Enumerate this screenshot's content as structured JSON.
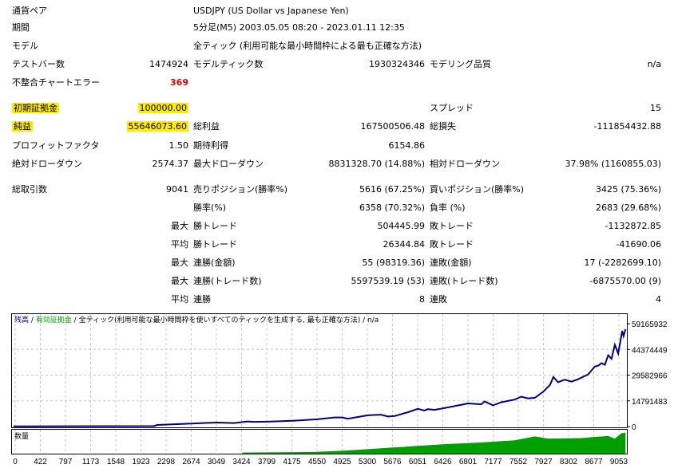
{
  "report": {
    "rows": [
      {
        "l1": "通貨ペア",
        "span": "USDJPY (US Dollar vs Japanese Yen)"
      },
      {
        "l1": "期間",
        "span": "5分足(M5) 2003.05.05 08:20 - 2023.01.11 12:35"
      },
      {
        "l1": "モデル",
        "span": "全ティック (利用可能な最小時間枠による最も正確な方法)"
      },
      {
        "l1": "テストバー数",
        "v1": "1474924",
        "l2": "モデルティック数",
        "v2": "1930324346",
        "l3": "モデリング品質",
        "v3": "n/a"
      },
      {
        "l1": "不整合チャートエラー",
        "v1": "369",
        "red": true
      },
      {
        "l1": "初期証拠金",
        "v1": "100000.00",
        "l3": "スプレッド",
        "v3": "15",
        "hl": true
      },
      {
        "l1": "純益",
        "v1": "55646073.60",
        "l2": "総利益",
        "v2": "167500506.48",
        "l3": "総損失",
        "v3": "-111854432.88",
        "hl": true
      },
      {
        "l1": "プロフィットファクタ",
        "v1": "1.50",
        "l2": "期待利得",
        "v2": "6154.86"
      },
      {
        "l1": "絶対ドローダウン",
        "v1": "2574.37",
        "l2": "最大ドローダウン",
        "v2": "8831328.70 (14.88%)",
        "l3": "相対ドローダウン",
        "v3": "37.98% (1160855.03)"
      },
      {
        "l1": "総取引数",
        "v1": "9041",
        "l2": "売りポジション(勝率%)",
        "v2": "5616 (67.25%)",
        "l3": "買いポジション(勝率%)",
        "v3": "3425 (75.36%)"
      },
      {
        "l2": "勝率(%)",
        "v2": "6358 (70.32%)",
        "l3": "負率 (%)",
        "v3": "2683 (29.68%)"
      },
      {
        "v1": "最大",
        "l2": "勝トレード",
        "v2": "504445.99",
        "l3": "敗トレード",
        "v3": "-1132872.85"
      },
      {
        "v1": "平均",
        "l2": "勝トレード",
        "v2": "26344.84",
        "l3": "敗トレード",
        "v3": "-41690.06"
      },
      {
        "v1": "最大",
        "l2": "連勝(金額)",
        "v2": "55 (98319.36)",
        "l3": "連敗(金額)",
        "v3": "17 (-2282699.10)"
      },
      {
        "v1": "最大",
        "l2": "連勝(トレード数)",
        "v2": "5597539.19 (53)",
        "l3": "連敗(トレード数)",
        "v3": "-6875570.00 (9)"
      },
      {
        "v1": "平均",
        "l2": "連勝",
        "v2": "8",
        "l3": "連敗",
        "v3": "4"
      }
    ]
  },
  "colors": {
    "highlight": "#ffeb00",
    "error": "#e00000",
    "balance": "#000080",
    "equity": "#00a000",
    "volume": "#00a000",
    "grid": "#c8c8c8"
  },
  "chart_data": {
    "type": "line",
    "title_parts": {
      "balance": "残高",
      "sep1": " / ",
      "equity": "有効証拠金",
      "sep2": " / ",
      "model": "全ティック(利用可能な最小時間枠を使いすべてのティックを生成する, 最も正確な方法)",
      "sep3": " / ",
      "quality": "n/a"
    },
    "volume_label": "数量",
    "y_ticks": [
      "59165932",
      "44374449",
      "29582966",
      "14791483",
      "0"
    ],
    "y_tick_values": [
      59165932,
      44374449,
      29582966,
      14791483,
      0
    ],
    "ylim": [
      0,
      59165932
    ],
    "x_ticks": [
      "0",
      "422",
      "797",
      "1173",
      "1548",
      "1923",
      "2298",
      "2674",
      "3049",
      "3424",
      "3799",
      "4175",
      "4550",
      "4925",
      "5300",
      "5676",
      "6051",
      "6426",
      "6801",
      "7177",
      "7552",
      "7927",
      "8302",
      "8677",
      "9053"
    ],
    "xlim": [
      0,
      9180
    ],
    "balance": {
      "x": [
        0,
        2100,
        2150,
        2700,
        3049,
        3300,
        3500,
        3600,
        3800,
        4175,
        4550,
        4800,
        4925,
        5000,
        5300,
        5500,
        5600,
        5700,
        5900,
        6051,
        6150,
        6200,
        6300,
        6500,
        6700,
        6801,
        7000,
        7050,
        7177,
        7300,
        7500,
        7600,
        7700,
        7800,
        7927,
        8030,
        8080,
        8150,
        8250,
        8350,
        8450,
        8600,
        8700,
        8750,
        8800,
        8850,
        8900,
        8950,
        9000,
        9050,
        9110,
        9130,
        9160
      ],
      "y": [
        100000,
        300000,
        900000,
        1800000,
        2300000,
        2000000,
        2900000,
        2700000,
        2800000,
        3300000,
        4200000,
        5200000,
        5200000,
        4500000,
        6500000,
        6800000,
        5800000,
        6000000,
        8200000,
        10200000,
        9200000,
        10000000,
        9600000,
        11000000,
        12500000,
        13300000,
        12800000,
        14400000,
        12200000,
        14000000,
        15500000,
        17200000,
        16200000,
        16500000,
        20000000,
        24000000,
        28500000,
        25500000,
        27000000,
        25800000,
        27200000,
        30000000,
        34500000,
        35000000,
        36500000,
        35500000,
        41000000,
        39000000,
        47000000,
        42000000,
        55000000,
        52000000,
        56000000
      ]
    },
    "volume": {
      "x": [
        0,
        3420,
        3424,
        4500,
        5000,
        5500,
        6000,
        6500,
        7000,
        7500,
        7800,
        8000,
        8500,
        8700,
        8900,
        9000,
        9100,
        9160
      ],
      "y": [
        0,
        0,
        0.05,
        0.08,
        0.15,
        0.25,
        0.35,
        0.45,
        0.52,
        0.62,
        0.8,
        0.7,
        0.72,
        0.78,
        0.82,
        0.7,
        0.95,
        0.98
      ]
    }
  }
}
